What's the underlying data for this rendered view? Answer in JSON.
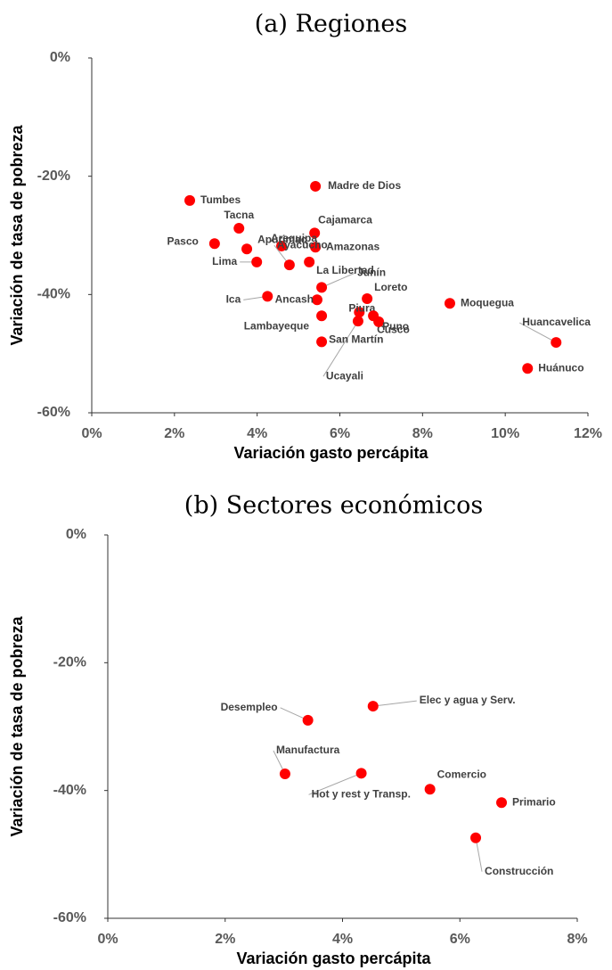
{
  "chart_data": [
    {
      "type": "scatter",
      "title": "(a) Regiones",
      "x_label": "Variación gasto percápita",
      "y_label": "Variación de tasa de pobreza",
      "color": "#ff0000",
      "labels": [
        "Tumbes",
        "Madre de Dios",
        "Tacna",
        "Cajamarca",
        "Pasco",
        "Arequipa",
        "Amazonas",
        "Apurimac",
        "Lima",
        "Ayacucho",
        "La Libertad",
        "Ica",
        "Junín",
        "Ancash",
        "Loreto",
        "Moquegua",
        "Piura",
        "Cusco",
        "Lambayeque",
        "Puno",
        "Ucayali",
        "San Martín",
        "Huancavelica",
        "Huánuco"
      ],
      "x": [
        2.37,
        5.41,
        3.56,
        5.39,
        2.97,
        4.59,
        5.41,
        3.75,
        3.99,
        4.78,
        5.26,
        4.25,
        5.56,
        5.45,
        6.66,
        8.66,
        6.47,
        6.81,
        5.56,
        6.94,
        6.44,
        5.56,
        11.23,
        10.54
      ],
      "values": [
        -24.1,
        -21.7,
        -28.8,
        -29.6,
        -31.4,
        -31.8,
        -32.0,
        -32.3,
        -34.5,
        -35.0,
        -34.5,
        -40.3,
        -38.8,
        -40.9,
        -40.7,
        -41.5,
        -43.0,
        -43.6,
        -43.6,
        -44.6,
        -44.5,
        -48.0,
        -48.1,
        -52.5
      ],
      "xlim": [
        0,
        12
      ],
      "ylim": [
        -60,
        0
      ],
      "xticks": [
        {
          "value": 0,
          "label": "0%"
        },
        {
          "value": 2,
          "label": "2%"
        },
        {
          "value": 4,
          "label": "4%"
        },
        {
          "value": 6,
          "label": "6%"
        },
        {
          "value": 8,
          "label": "8%"
        },
        {
          "value": 10,
          "label": "10%"
        },
        {
          "value": 12,
          "label": "12%"
        }
      ],
      "yticks": [
        {
          "value": 0,
          "label": "0%"
        },
        {
          "value": -20,
          "label": "-20%"
        },
        {
          "value": -40,
          "label": "-40%"
        },
        {
          "value": -60,
          "label": "-60%"
        }
      ]
    },
    {
      "type": "scatter",
      "title": "(b) Sectores económicos",
      "x_label": "Variación gasto percápita",
      "y_label": "Variación de tasa de pobreza",
      "color": "#ff0000",
      "labels": [
        "Desempleo",
        "Elec y agua y Serv.",
        "Manufactura",
        "Hot y rest y Transp.",
        "Comercio",
        "Primario",
        "Construcción"
      ],
      "x": [
        3.41,
        4.52,
        3.02,
        4.32,
        5.49,
        6.71,
        6.27
      ],
      "values": [
        -29.0,
        -26.8,
        -37.4,
        -37.3,
        -39.8,
        -41.9,
        -47.4
      ],
      "xlim": [
        0,
        8
      ],
      "ylim": [
        -60,
        0
      ],
      "xticks": [
        {
          "value": 0,
          "label": "0%"
        },
        {
          "value": 2,
          "label": "2%"
        },
        {
          "value": 4,
          "label": "4%"
        },
        {
          "value": 6,
          "label": "6%"
        },
        {
          "value": 8,
          "label": "8%"
        }
      ],
      "yticks": [
        {
          "value": 0,
          "label": "0%"
        },
        {
          "value": -20,
          "label": "-20%"
        },
        {
          "value": -40,
          "label": "-40%"
        },
        {
          "value": -60,
          "label": "-60%"
        }
      ]
    }
  ]
}
